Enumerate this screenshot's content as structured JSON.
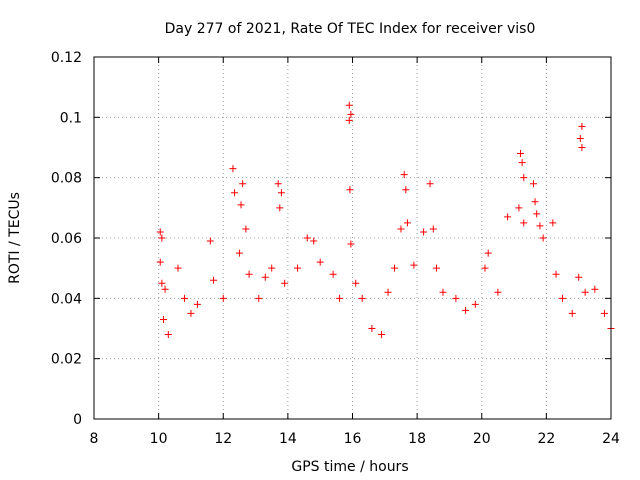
{
  "chart_data": {
    "type": "scatter",
    "title": "Day 277 of 2021, Rate Of TEC Index for receiver vis0",
    "xlabel": "GPS time / hours",
    "ylabel": "ROTI / TECUs",
    "xlim": [
      8,
      24
    ],
    "ylim": [
      0,
      0.12
    ],
    "xticks": [
      8,
      10,
      12,
      14,
      16,
      18,
      20,
      22,
      24
    ],
    "yticks": [
      0,
      0.02,
      0.04,
      0.06,
      0.08,
      0.1,
      0.12
    ],
    "xtick_labels": [
      "8",
      "10",
      "12",
      "14",
      "16",
      "18",
      "20",
      "22",
      "24"
    ],
    "ytick_labels": [
      "0",
      "0.02",
      "0.04",
      "0.06",
      "0.08",
      "0.1",
      "0.12"
    ],
    "grid": true,
    "marker": "+",
    "color": "#ff0000",
    "series": [
      {
        "name": "ROTI",
        "points": [
          [
            10.05,
            0.062
          ],
          [
            10.1,
            0.06
          ],
          [
            10.05,
            0.052
          ],
          [
            10.1,
            0.045
          ],
          [
            10.2,
            0.043
          ],
          [
            10.15,
            0.033
          ],
          [
            10.3,
            0.028
          ],
          [
            10.6,
            0.05
          ],
          [
            10.8,
            0.04
          ],
          [
            11.0,
            0.035
          ],
          [
            11.2,
            0.038
          ],
          [
            11.6,
            0.059
          ],
          [
            11.7,
            0.046
          ],
          [
            12.0,
            0.04
          ],
          [
            12.3,
            0.083
          ],
          [
            12.35,
            0.075
          ],
          [
            12.6,
            0.078
          ],
          [
            12.55,
            0.071
          ],
          [
            12.7,
            0.063
          ],
          [
            12.5,
            0.055
          ],
          [
            12.8,
            0.048
          ],
          [
            13.1,
            0.04
          ],
          [
            13.3,
            0.047
          ],
          [
            13.5,
            0.05
          ],
          [
            13.7,
            0.078
          ],
          [
            13.8,
            0.075
          ],
          [
            13.75,
            0.07
          ],
          [
            13.9,
            0.045
          ],
          [
            14.3,
            0.05
          ],
          [
            14.6,
            0.06
          ],
          [
            14.8,
            0.059
          ],
          [
            15.0,
            0.052
          ],
          [
            15.4,
            0.048
          ],
          [
            15.6,
            0.04
          ],
          [
            15.9,
            0.104
          ],
          [
            15.95,
            0.101
          ],
          [
            15.9,
            0.099
          ],
          [
            15.92,
            0.076
          ],
          [
            15.95,
            0.058
          ],
          [
            16.1,
            0.045
          ],
          [
            16.3,
            0.04
          ],
          [
            16.6,
            0.03
          ],
          [
            16.9,
            0.028
          ],
          [
            17.1,
            0.042
          ],
          [
            17.3,
            0.05
          ],
          [
            17.5,
            0.063
          ],
          [
            17.6,
            0.081
          ],
          [
            17.65,
            0.076
          ],
          [
            17.7,
            0.065
          ],
          [
            17.9,
            0.051
          ],
          [
            18.2,
            0.062
          ],
          [
            18.4,
            0.078
          ],
          [
            18.5,
            0.063
          ],
          [
            18.6,
            0.05
          ],
          [
            18.8,
            0.042
          ],
          [
            19.2,
            0.04
          ],
          [
            19.5,
            0.036
          ],
          [
            19.8,
            0.038
          ],
          [
            20.1,
            0.05
          ],
          [
            20.2,
            0.055
          ],
          [
            20.5,
            0.042
          ],
          [
            20.8,
            0.067
          ],
          [
            21.2,
            0.088
          ],
          [
            21.25,
            0.085
          ],
          [
            21.3,
            0.08
          ],
          [
            21.15,
            0.07
          ],
          [
            21.3,
            0.065
          ],
          [
            21.6,
            0.078
          ],
          [
            21.65,
            0.072
          ],
          [
            21.7,
            0.068
          ],
          [
            21.8,
            0.064
          ],
          [
            21.9,
            0.06
          ],
          [
            22.2,
            0.065
          ],
          [
            22.3,
            0.048
          ],
          [
            22.5,
            0.04
          ],
          [
            22.8,
            0.035
          ],
          [
            23.1,
            0.097
          ],
          [
            23.05,
            0.093
          ],
          [
            23.1,
            0.09
          ],
          [
            23.0,
            0.047
          ],
          [
            23.2,
            0.042
          ],
          [
            23.5,
            0.043
          ],
          [
            23.8,
            0.035
          ],
          [
            24.0,
            0.03
          ]
        ]
      }
    ]
  }
}
